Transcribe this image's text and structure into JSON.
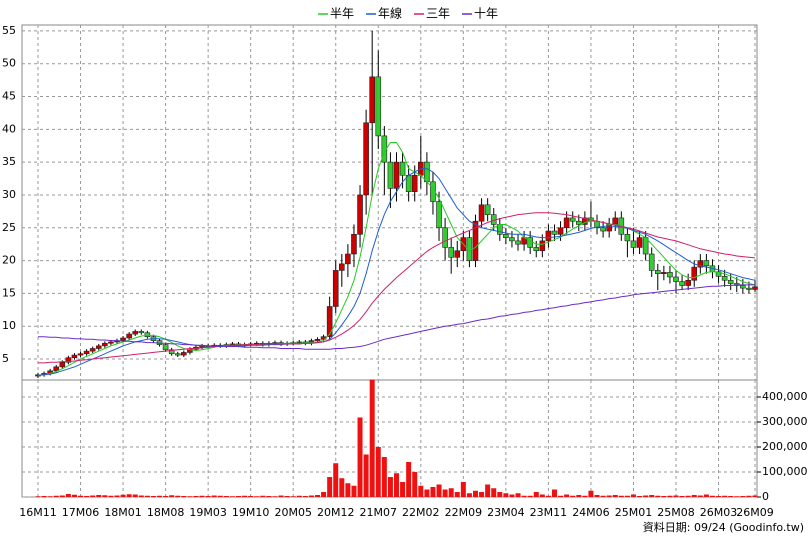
{
  "chart_data": {
    "type": "candlestick",
    "categories": [
      "16M11",
      null,
      null,
      null,
      null,
      null,
      null,
      "17M06",
      null,
      null,
      null,
      null,
      null,
      null,
      "18M01",
      null,
      null,
      null,
      null,
      null,
      null,
      "18M08",
      null,
      null,
      null,
      null,
      null,
      null,
      "19M03",
      null,
      null,
      null,
      null,
      null,
      null,
      "19M10",
      null,
      null,
      null,
      null,
      null,
      null,
      "20M05",
      null,
      null,
      null,
      null,
      null,
      null,
      "20M12",
      null,
      null,
      null,
      null,
      null,
      null,
      "21M07",
      null,
      null,
      null,
      null,
      null,
      null,
      "22M02",
      null,
      null,
      null,
      null,
      null,
      null,
      "22M09",
      null,
      null,
      null,
      null,
      null,
      null,
      "23M04",
      null,
      null,
      null,
      null,
      null,
      null,
      "23M11",
      null,
      null,
      null,
      null,
      null,
      null,
      "24M06",
      null,
      null,
      null,
      null,
      null,
      null,
      "25M01",
      null,
      null,
      null,
      null,
      null,
      null,
      "25M08",
      null,
      null,
      null,
      null,
      null,
      null,
      "26M03",
      null,
      null,
      null,
      null,
      null,
      "26M09"
    ],
    "open": [
      2.4,
      2.6,
      2.8,
      3.2,
      3.8,
      4.5,
      5.2,
      5.6,
      5.8,
      6.2,
      6.6,
      7.0,
      7.4,
      7.6,
      7.8,
      8.2,
      8.8,
      9.2,
      9.0,
      8.4,
      7.8,
      7.2,
      6.4,
      5.8,
      5.6,
      6.0,
      6.5,
      6.8,
      7.0,
      7.0,
      7.1,
      7.0,
      7.2,
      7.3,
      7.1,
      7.2,
      7.3,
      7.4,
      7.2,
      7.4,
      7.5,
      7.3,
      7.4,
      7.5,
      7.6,
      7.4,
      7.8,
      8.0,
      8.4,
      13.0,
      18.5,
      19.5,
      21.0,
      24.0,
      30.0,
      41.0,
      48.0,
      39.0,
      35.0,
      31.0,
      35.0,
      33.0,
      30.5,
      33.0,
      35.0,
      32.0,
      29.0,
      25.0,
      22.0,
      20.5,
      21.5,
      23.5,
      20.0,
      26.0,
      28.5,
      27.0,
      25.5,
      24.0,
      23.5,
      23.0,
      22.5,
      23.5,
      22.0,
      21.5,
      23.0,
      24.5,
      24.0,
      25.0,
      26.5,
      26.0,
      25.5,
      26.5,
      26.0,
      25.0,
      24.5,
      25.5,
      26.5,
      24.0,
      23.0,
      22.0,
      23.5,
      21.0,
      18.5,
      18.0,
      18.2,
      17.5,
      16.8,
      16.2,
      17.0,
      19.0,
      20.0,
      19.2,
      18.3,
      17.6,
      17.0,
      16.5,
      16.2,
      15.8,
      15.6
    ],
    "high": [
      2.9,
      3.1,
      3.5,
      4.1,
      4.8,
      5.5,
      5.9,
      6.1,
      6.5,
      6.9,
      7.3,
      7.7,
      7.9,
      8.1,
      8.5,
      9.1,
      9.5,
      9.5,
      9.3,
      8.7,
      8.1,
      7.5,
      6.7,
      6.1,
      6.3,
      6.8,
      7.1,
      7.3,
      7.3,
      7.4,
      7.4,
      7.5,
      7.6,
      7.6,
      7.5,
      7.6,
      7.7,
      7.7,
      7.7,
      7.8,
      7.8,
      7.7,
      7.8,
      7.9,
      7.9,
      8.1,
      8.3,
      8.7,
      14.5,
      20,
      21,
      22.5,
      25.5,
      31.5,
      43,
      55,
      52,
      40.5,
      36.5,
      36.5,
      36.5,
      34.5,
      34.5,
      39,
      36.5,
      33.5,
      30.5,
      26.5,
      23.5,
      23,
      24.5,
      24.5,
      27,
      29.5,
      29.5,
      28,
      26.5,
      25,
      24.5,
      24,
      24.5,
      24.5,
      23,
      24,
      25.5,
      25.5,
      26,
      27.5,
      27.5,
      27,
      27.5,
      29,
      27,
      26,
      26.5,
      27.5,
      27.5,
      25,
      25,
      24.5,
      24.5,
      22,
      19.5,
      19.2,
      19.2,
      18.5,
      17.8,
      18,
      20,
      21,
      21,
      20.2,
      19.3,
      18.6,
      18,
      17.5,
      17.2,
      16.8,
      17
    ],
    "low": [
      2.1,
      2.3,
      2.5,
      2.9,
      3.5,
      4.2,
      4.9,
      5.3,
      5.5,
      5.9,
      6.3,
      6.7,
      7.1,
      7.3,
      7.5,
      7.9,
      8.5,
      8.7,
      8.1,
      7.5,
      6.9,
      6.1,
      5.5,
      5.3,
      5.3,
      5.7,
      6.2,
      6.5,
      6.7,
      6.7,
      6.7,
      6.7,
      6.9,
      6.8,
      6.8,
      6.9,
      7.0,
      6.9,
      6.9,
      7.1,
      7.0,
      7.0,
      7.1,
      7.2,
      7.1,
      7.1,
      7.5,
      7.7,
      7.9,
      12,
      16,
      17.5,
      19,
      22,
      27,
      30,
      37,
      30,
      28,
      29,
      31,
      29,
      29,
      31,
      30,
      27,
      23,
      20,
      18,
      19,
      20,
      19,
      19,
      25,
      26,
      24.5,
      23,
      22.5,
      22,
      21.5,
      21.5,
      21,
      20.5,
      20.5,
      22,
      23,
      23,
      24,
      25,
      24.5,
      24.5,
      25,
      24,
      23.5,
      23.5,
      24.5,
      23,
      20.5,
      21,
      21,
      20,
      17.5,
      15.5,
      17,
      16.5,
      15,
      15.5,
      15.5,
      16,
      18,
      18,
      17.3,
      16.6,
      16,
      15.5,
      15.2,
      15,
      15,
      15.2
    ],
    "close": [
      2.6,
      2.8,
      3.2,
      3.8,
      4.5,
      5.2,
      5.6,
      5.8,
      6.2,
      6.6,
      7.0,
      7.4,
      7.6,
      7.8,
      8.2,
      8.8,
      9.2,
      9.0,
      8.4,
      7.8,
      7.2,
      6.4,
      5.8,
      5.6,
      6.0,
      6.5,
      6.8,
      7.0,
      7.0,
      7.1,
      7.0,
      7.2,
      7.3,
      7.1,
      7.2,
      7.3,
      7.4,
      7.2,
      7.4,
      7.5,
      7.3,
      7.4,
      7.5,
      7.6,
      7.4,
      7.8,
      8.0,
      8.4,
      13.0,
      18.5,
      19.5,
      21.0,
      24.0,
      30.0,
      41.0,
      48.0,
      39.0,
      35.0,
      31.0,
      35.0,
      33.0,
      30.5,
      33.0,
      35.0,
      32.0,
      29.0,
      25.0,
      22.0,
      20.5,
      21.5,
      23.5,
      20.0,
      26.0,
      28.5,
      27.0,
      25.5,
      24.0,
      23.5,
      23.0,
      22.5,
      23.5,
      22.0,
      21.5,
      23.0,
      24.5,
      24.0,
      25.0,
      26.5,
      26.0,
      25.5,
      26.5,
      26.0,
      25.0,
      24.5,
      25.5,
      26.5,
      24.0,
      23.0,
      22.0,
      23.5,
      21.0,
      18.5,
      18.0,
      18.2,
      17.5,
      16.8,
      16.2,
      17.0,
      19.0,
      20.0,
      19.2,
      18.3,
      17.6,
      17.0,
      16.5,
      16.2,
      15.8,
      15.6,
      16.0
    ],
    "up_color": "#cc0000",
    "down_color": "#33cc33",
    "series": [
      {
        "name": "半年",
        "color": "#22cc22",
        "values": [
          2.5,
          2.6,
          2.8,
          3.1,
          3.5,
          4.0,
          4.5,
          5.0,
          5.4,
          5.8,
          6.2,
          6.6,
          7.0,
          7.3,
          7.6,
          7.9,
          8.2,
          8.5,
          8.6,
          8.6,
          8.4,
          8.0,
          7.5,
          7.0,
          6.6,
          6.4,
          6.3,
          6.4,
          6.6,
          6.8,
          7.0,
          7.1,
          7.1,
          7.1,
          7.2,
          7.2,
          7.2,
          7.3,
          7.3,
          7.3,
          7.3,
          7.4,
          7.4,
          7.4,
          7.5,
          7.5,
          7.6,
          7.8,
          8.8,
          10.5,
          12.5,
          14.5,
          17.0,
          20.5,
          25.0,
          30.0,
          34.0,
          36.5,
          38.0,
          38.0,
          36.5,
          34.0,
          33.5,
          33.0,
          32.0,
          31.0,
          29.5,
          27.5,
          25.5,
          23.5,
          22.5,
          21.5,
          22.0,
          23.0,
          24.0,
          25.0,
          25.5,
          25.5,
          25.0,
          24.5,
          23.5,
          23.0,
          22.5,
          22.5,
          22.8,
          23.2,
          23.6,
          24.2,
          24.8,
          25.3,
          25.8,
          26.0,
          26.0,
          25.8,
          25.5,
          25.5,
          25.3,
          25.0,
          24.5,
          24.0,
          23.5,
          22.5,
          21.5,
          20.5,
          19.5,
          18.5,
          17.8,
          17.4,
          17.4,
          17.8,
          18.2,
          18.3,
          18.2,
          18.0,
          17.6,
          17.2,
          16.8,
          16.5,
          16.3
        ]
      },
      {
        "name": "年線",
        "color": "#1f5fd0",
        "values": [
          2.5,
          2.6,
          2.7,
          2.9,
          3.2,
          3.5,
          3.8,
          4.2,
          4.6,
          5.0,
          5.4,
          5.8,
          6.2,
          6.6,
          7.0,
          7.3,
          7.6,
          7.8,
          8.0,
          8.1,
          8.1,
          8.0,
          7.8,
          7.6,
          7.4,
          7.2,
          7.1,
          7.0,
          7.0,
          6.9,
          6.9,
          6.9,
          7.0,
          7.0,
          7.0,
          7.1,
          7.1,
          7.1,
          7.2,
          7.2,
          7.2,
          7.3,
          7.3,
          7.3,
          7.4,
          7.4,
          7.5,
          7.6,
          8.0,
          9.0,
          10.2,
          11.5,
          13.0,
          15.0,
          18.0,
          21.5,
          24.5,
          27.0,
          29.0,
          30.5,
          32.0,
          33.0,
          33.5,
          34.0,
          34.0,
          33.5,
          32.5,
          31.0,
          29.5,
          28.0,
          27.0,
          26.0,
          25.5,
          25.0,
          24.8,
          24.6,
          24.4,
          24.2,
          24.0,
          24.0,
          24.0,
          23.8,
          23.6,
          23.5,
          23.5,
          23.6,
          23.7,
          23.9,
          24.1,
          24.3,
          24.6,
          24.9,
          25.1,
          25.2,
          25.3,
          25.2,
          25.1,
          24.9,
          24.6,
          24.3,
          24.0,
          23.5,
          23.0,
          22.4,
          21.8,
          21.2,
          20.6,
          20.0,
          19.5,
          19.2,
          19.0,
          18.8,
          18.6,
          18.3,
          18.0,
          17.7,
          17.4,
          17.2,
          17.0
        ]
      },
      {
        "name": "三年",
        "color": "#d0206a",
        "values": [
          4.4,
          4.4,
          4.5,
          4.5,
          4.6,
          4.6,
          4.7,
          4.8,
          4.9,
          5.0,
          5.1,
          5.2,
          5.3,
          5.4,
          5.5,
          5.6,
          5.7,
          5.8,
          5.9,
          6.0,
          6.1,
          6.2,
          6.3,
          6.4,
          6.5,
          6.6,
          6.6,
          6.7,
          6.8,
          6.9,
          7.0,
          7.0,
          7.1,
          7.1,
          7.2,
          7.2,
          7.2,
          7.3,
          7.3,
          7.3,
          7.3,
          7.3,
          7.3,
          7.3,
          7.4,
          7.4,
          7.5,
          7.6,
          7.9,
          8.3,
          8.8,
          9.4,
          10.1,
          11.0,
          12.2,
          13.5,
          14.6,
          15.6,
          16.5,
          17.4,
          18.2,
          19.0,
          19.8,
          20.6,
          21.4,
          22.0,
          22.5,
          23.0,
          23.4,
          23.8,
          24.2,
          24.6,
          25.0,
          25.4,
          25.8,
          26.1,
          26.4,
          26.6,
          26.8,
          27.0,
          27.1,
          27.2,
          27.3,
          27.3,
          27.3,
          27.2,
          27.1,
          27.0,
          26.8,
          26.6,
          26.4,
          26.2,
          26.0,
          25.8,
          25.6,
          25.4,
          25.2,
          25.0,
          24.8,
          24.5,
          24.2,
          23.9,
          23.6,
          23.4,
          23.2,
          23.0,
          22.7,
          22.4,
          22.1,
          21.8,
          21.6,
          21.4,
          21.2,
          21.0,
          20.9,
          20.7,
          20.6,
          20.5,
          20.4
        ]
      },
      {
        "name": "十年",
        "color": "#6a2cc8",
        "values": [
          8.4,
          8.4,
          8.3,
          8.3,
          8.2,
          8.2,
          8.1,
          8.1,
          8.0,
          8.0,
          7.9,
          7.9,
          7.8,
          7.8,
          7.7,
          7.7,
          7.6,
          7.6,
          7.5,
          7.5,
          7.4,
          7.4,
          7.3,
          7.3,
          7.2,
          7.2,
          7.1,
          7.1,
          7.0,
          7.0,
          7.0,
          6.9,
          6.9,
          6.9,
          6.8,
          6.8,
          6.8,
          6.7,
          6.7,
          6.7,
          6.6,
          6.6,
          6.6,
          6.6,
          6.5,
          6.5,
          6.5,
          6.5,
          6.5,
          6.6,
          6.6,
          6.7,
          6.8,
          6.9,
          7.1,
          7.4,
          7.7,
          8.0,
          8.2,
          8.4,
          8.6,
          8.8,
          9.0,
          9.2,
          9.4,
          9.6,
          9.8,
          10.0,
          10.1,
          10.3,
          10.4,
          10.6,
          10.8,
          11.0,
          11.1,
          11.3,
          11.5,
          11.6,
          11.8,
          11.9,
          12.1,
          12.2,
          12.4,
          12.5,
          12.7,
          12.8,
          13.0,
          13.1,
          13.3,
          13.4,
          13.6,
          13.7,
          13.9,
          14.0,
          14.2,
          14.3,
          14.5,
          14.6,
          14.8,
          14.9,
          15.0,
          15.1,
          15.2,
          15.3,
          15.4,
          15.5,
          15.6,
          15.7,
          15.8,
          15.9,
          16.0,
          16.1,
          16.1,
          16.2,
          16.2,
          16.3,
          16.3,
          16.3,
          16.3
        ]
      }
    ],
    "ylim": [
      1.8,
      55.9
    ],
    "yticks": [
      5,
      10,
      15,
      20,
      25,
      30,
      35,
      40,
      45,
      50,
      55
    ],
    "grid": true,
    "legend": "top",
    "volume": {
      "color": "#ee1111",
      "values": [
        3000,
        4000,
        3000,
        5000,
        6000,
        12000,
        9000,
        5000,
        4000,
        6000,
        8000,
        7000,
        5000,
        6000,
        9000,
        11000,
        10000,
        6000,
        5000,
        4000,
        5000,
        4000,
        7000,
        5000,
        4000,
        3000,
        4000,
        5000,
        4000,
        6000,
        5000,
        4000,
        3000,
        4000,
        5000,
        4000,
        3000,
        5000,
        4000,
        3000,
        6000,
        4000,
        3000,
        5000,
        4000,
        6000,
        8000,
        20000,
        80000,
        135000,
        75000,
        55000,
        45000,
        318000,
        170000,
        470000,
        200000,
        160000,
        80000,
        95000,
        60000,
        140000,
        100000,
        45000,
        30000,
        40000,
        50000,
        30000,
        35000,
        20000,
        60000,
        15000,
        25000,
        20000,
        50000,
        35000,
        20000,
        15000,
        10000,
        15000,
        5000,
        5000,
        20000,
        10000,
        5000,
        30000,
        5000,
        10000,
        5000,
        8000,
        5000,
        25000,
        8000,
        5000,
        6000,
        8000,
        5000,
        5000,
        10000,
        4000,
        6000,
        8000,
        5000,
        4000,
        5000,
        6000,
        4000,
        5000,
        8000,
        6000,
        10000,
        5000,
        4000,
        5000,
        4000,
        3000,
        4000,
        5000,
        6000
      ],
      "ylim": [
        0,
        468000
      ],
      "yticks": [
        0,
        {
          "value": 100000,
          "label": "100,000"
        },
        {
          "value": 200000,
          "label": "200,000"
        },
        {
          "value": 300000,
          "label": "300,000"
        },
        {
          "value": 400000,
          "label": "400,000"
        }
      ]
    },
    "footer": "資料日期: 09/24 (Goodinfo.tw)"
  }
}
